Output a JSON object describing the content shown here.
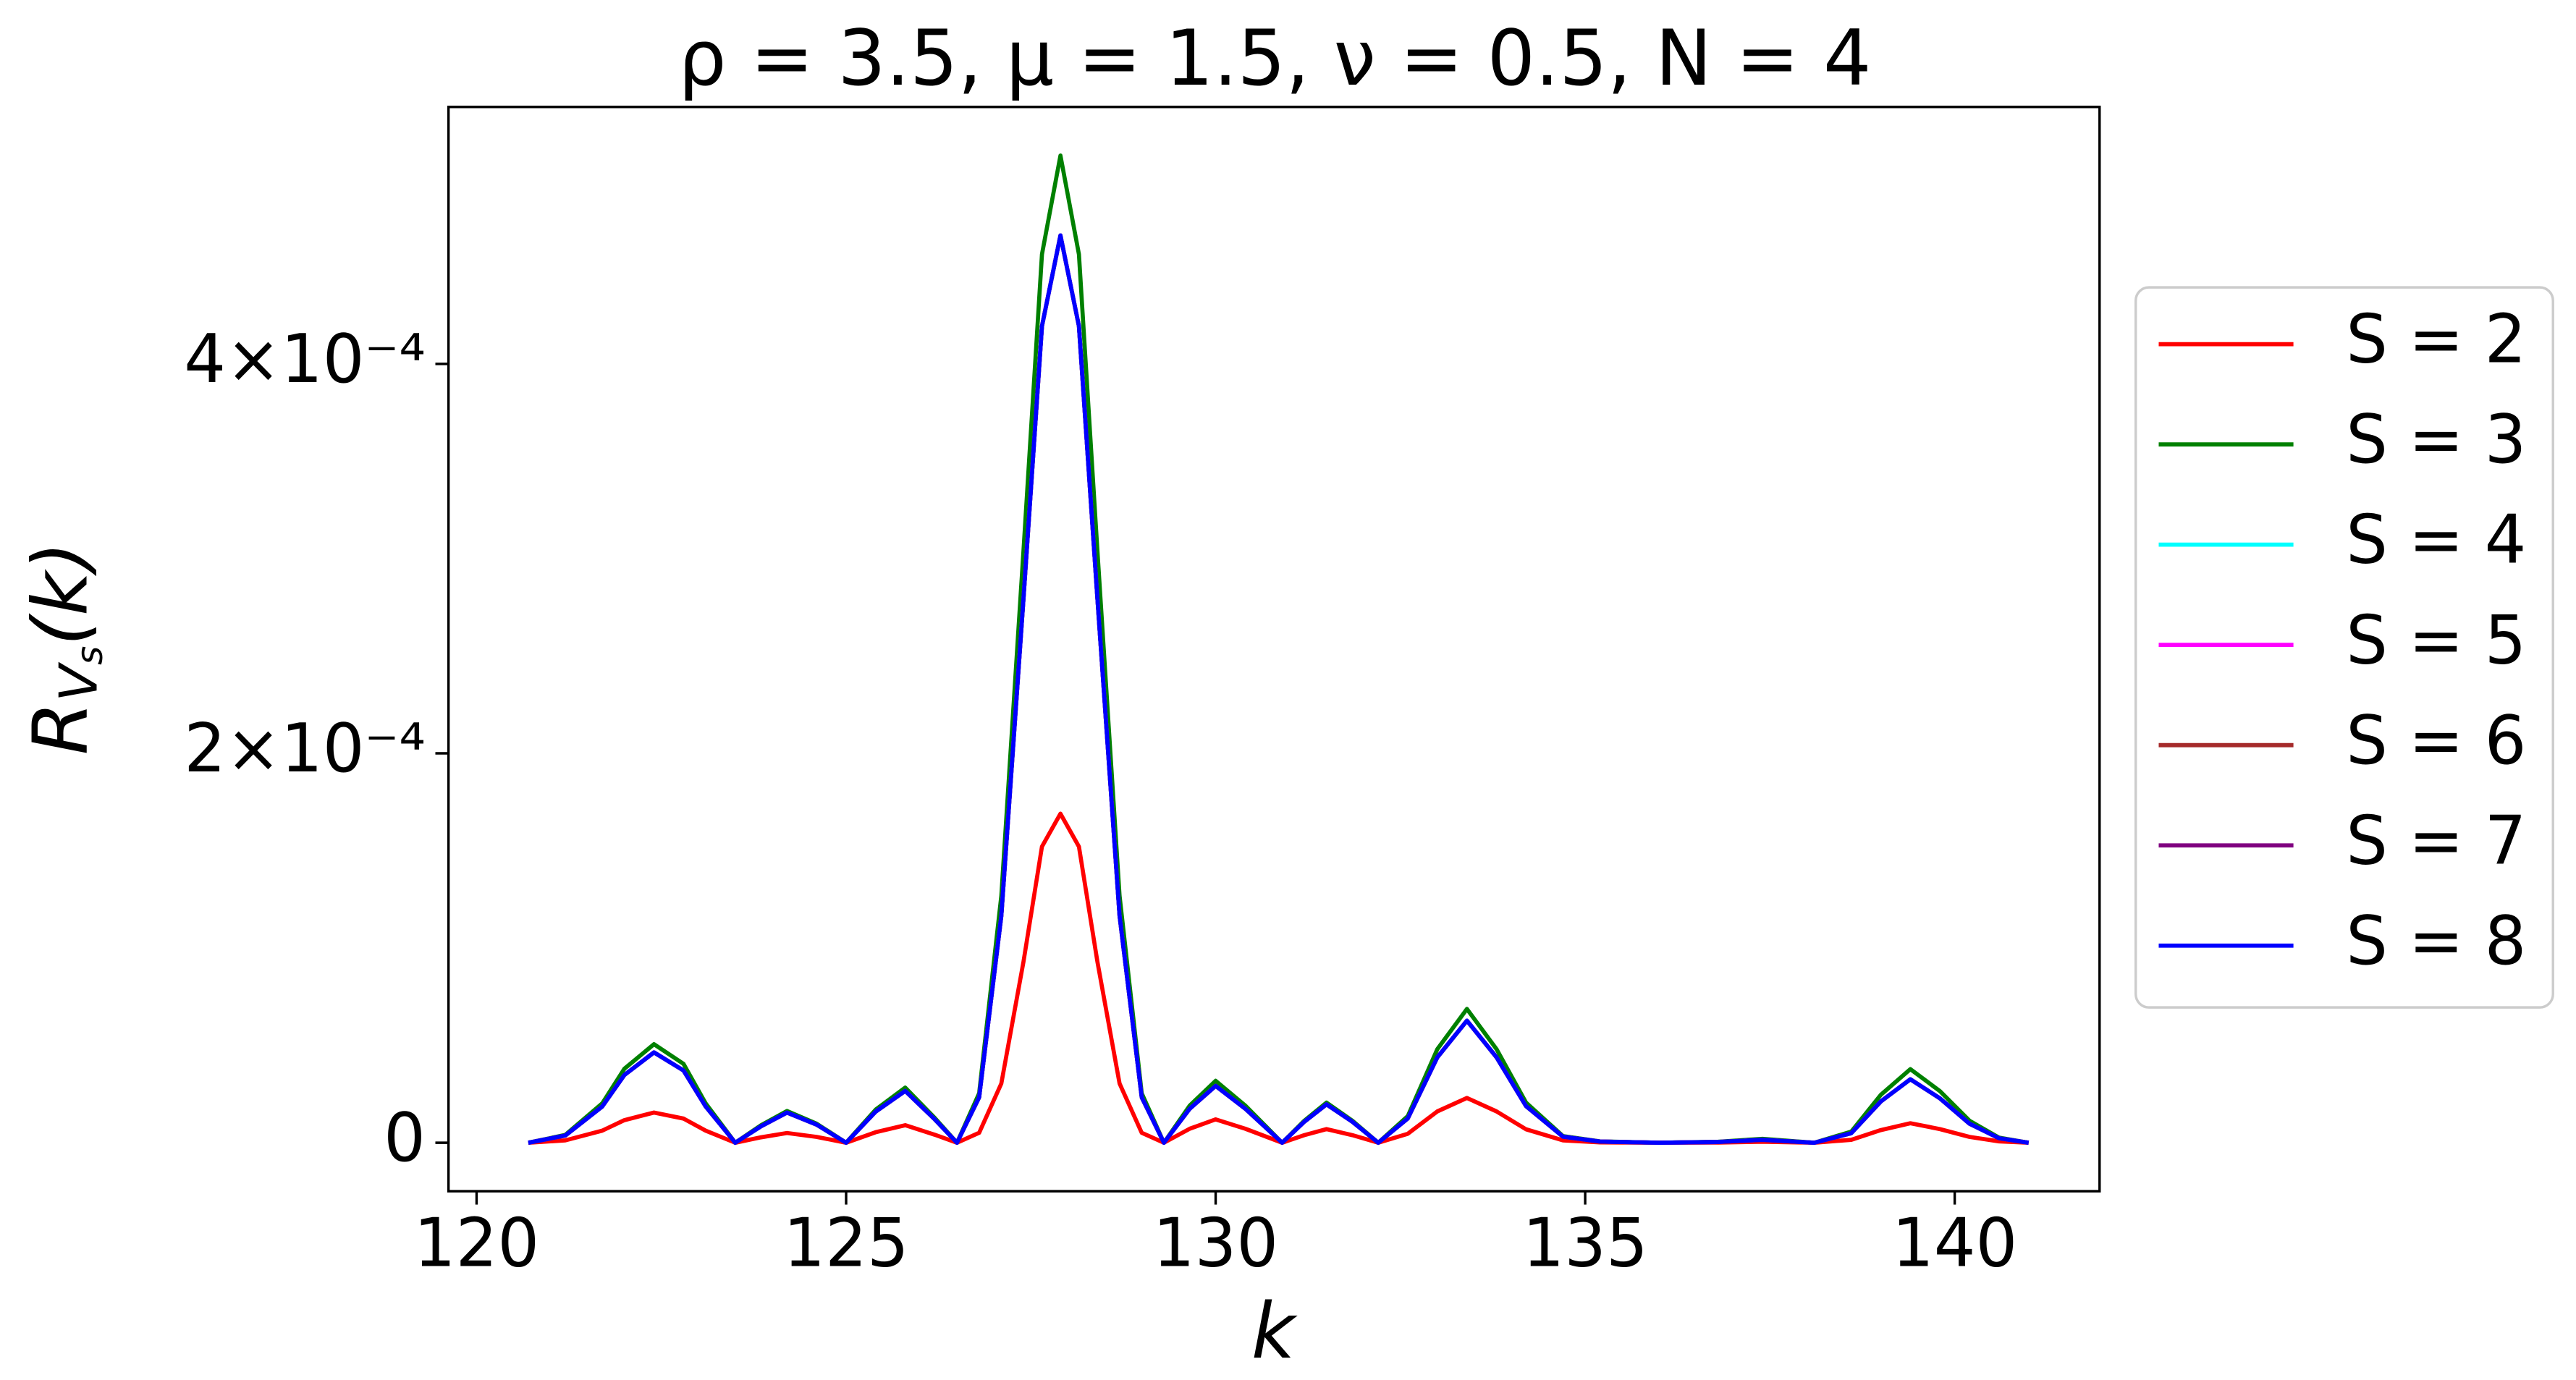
{
  "chart_data": {
    "type": "line",
    "title": "ρ = 3.5, μ = 1.5, ν = 0.5, N = 4",
    "xlabel": "k",
    "ylabel": [
      "R",
      "V",
      "s",
      "(k)"
    ],
    "x": [
      120.7,
      121.2,
      121.7,
      122.0,
      122.4,
      122.8,
      123.1,
      123.5,
      123.85,
      124.2,
      124.6,
      125.0,
      125.4,
      125.8,
      126.2,
      126.5,
      126.8,
      127.1,
      127.4,
      127.65,
      127.9,
      128.15,
      128.4,
      128.7,
      129.0,
      129.3,
      129.65,
      130.0,
      130.4,
      130.9,
      131.2,
      131.5,
      131.85,
      132.2,
      132.6,
      133.0,
      133.4,
      133.8,
      134.2,
      134.7,
      135.2,
      136.0,
      136.8,
      137.4,
      138.1,
      138.6,
      139.0,
      139.4,
      139.8,
      140.2,
      140.6,
      141.0
    ],
    "series": [
      {
        "name": "S = 2",
        "color": "#ff0000",
        "values": [
          0,
          1.2e-06,
          6.2e-06,
          1.16e-05,
          1.55e-05,
          1.24e-05,
          6.2e-06,
          0,
          2.8e-06,
          5e-06,
          3e-06,
          0,
          5.4e-06,
          9e-06,
          4.1e-06,
          0,
          5.1e-06,
          3.04e-05,
          9.3e-05,
          0.0001521,
          0.000169,
          0.0001521,
          9.3e-05,
          3.04e-05,
          5.1e-06,
          0,
          7.2e-06,
          1.2e-05,
          7.2e-06,
          0,
          3.9e-06,
          7e-06,
          3.9e-06,
          0,
          4.6e-06,
          1.61e-05,
          2.3e-05,
          1.61e-05,
          6.9e-06,
          1.2e-06,
          2e-07,
          0,
          1e-07,
          5e-07,
          0,
          1.5e-06,
          6.5e-06,
          1e-05,
          7e-06,
          3e-06,
          7e-07,
          0
        ]
      },
      {
        "name": "S = 3",
        "color": "#008000",
        "values": [
          0,
          4e-06,
          2.02e-05,
          3.8e-05,
          5.06e-05,
          4.05e-05,
          2.02e-05,
          0,
          9e-06,
          1.63e-05,
          9.8e-06,
          0,
          1.7e-05,
          2.83e-05,
          1.27e-05,
          0,
          2.54e-05,
          0.0001268,
          0.0003042,
          0.0004563,
          0.000507,
          0.0004563,
          0.0003042,
          0.0001268,
          2.54e-05,
          0,
          1.91e-05,
          3.18e-05,
          1.91e-05,
          0,
          1.13e-05,
          2.06e-05,
          1.13e-05,
          0,
          1.37e-05,
          4.81e-05,
          6.87e-05,
          4.81e-05,
          2.06e-05,
          3.4e-06,
          7e-07,
          0,
          5e-07,
          2e-06,
          0,
          5.7e-06,
          2.46e-05,
          3.78e-05,
          2.65e-05,
          1.13e-05,
          2.6e-06,
          0
        ]
      },
      {
        "name": "S = 4",
        "color": "#00ffff",
        "values": [
          0,
          3.7e-06,
          1.86e-05,
          3.48e-05,
          4.64e-05,
          3.71e-05,
          1.86e-05,
          0,
          8.5e-06,
          1.55e-05,
          9.3e-06,
          0,
          1.6e-05,
          2.66e-05,
          1.2e-05,
          0,
          2.33e-05,
          0.0001165,
          0.0002796,
          0.0004194,
          0.000466,
          0.0004194,
          0.0002796,
          0.0001165,
          2.33e-05,
          0,
          1.75e-05,
          2.92e-05,
          1.75e-05,
          0,
          1.08e-05,
          1.97e-05,
          1.08e-05,
          0,
          1.25e-05,
          4.39e-05,
          6.27e-05,
          4.39e-05,
          1.88e-05,
          3.1e-06,
          6e-07,
          0,
          4e-07,
          1.5e-06,
          0,
          4.9e-06,
          2.12e-05,
          3.26e-05,
          2.28e-05,
          9.8e-06,
          2.3e-06,
          0
        ]
      },
      {
        "name": "S = 5",
        "color": "#ff00ff",
        "values": [
          0,
          3.7e-06,
          1.86e-05,
          3.48e-05,
          4.64e-05,
          3.71e-05,
          1.86e-05,
          0,
          8.5e-06,
          1.55e-05,
          9.3e-06,
          0,
          1.6e-05,
          2.66e-05,
          1.2e-05,
          0,
          2.33e-05,
          0.0001165,
          0.0002796,
          0.0004194,
          0.000466,
          0.0004194,
          0.0002796,
          0.0001165,
          2.33e-05,
          0,
          1.75e-05,
          2.92e-05,
          1.75e-05,
          0,
          1.08e-05,
          1.97e-05,
          1.08e-05,
          0,
          1.25e-05,
          4.39e-05,
          6.27e-05,
          4.39e-05,
          1.88e-05,
          3.1e-06,
          6e-07,
          0,
          4e-07,
          1.5e-06,
          0,
          4.9e-06,
          2.12e-05,
          3.26e-05,
          2.28e-05,
          9.8e-06,
          2.3e-06,
          0
        ]
      },
      {
        "name": "S = 6",
        "color": "#a52a2a",
        "values": [
          0,
          3.7e-06,
          1.86e-05,
          3.48e-05,
          4.64e-05,
          3.71e-05,
          1.86e-05,
          0,
          8.5e-06,
          1.55e-05,
          9.3e-06,
          0,
          1.6e-05,
          2.66e-05,
          1.2e-05,
          0,
          2.33e-05,
          0.0001165,
          0.0002796,
          0.0004194,
          0.000466,
          0.0004194,
          0.0002796,
          0.0001165,
          2.33e-05,
          0,
          1.75e-05,
          2.92e-05,
          1.75e-05,
          0,
          1.08e-05,
          1.97e-05,
          1.08e-05,
          0,
          1.25e-05,
          4.39e-05,
          6.27e-05,
          4.39e-05,
          1.88e-05,
          3.1e-06,
          6e-07,
          0,
          4e-07,
          1.5e-06,
          0,
          4.9e-06,
          2.12e-05,
          3.26e-05,
          2.28e-05,
          9.8e-06,
          2.3e-06,
          0
        ]
      },
      {
        "name": "S = 7",
        "color": "#800080",
        "values": [
          0,
          3.7e-06,
          1.86e-05,
          3.48e-05,
          4.64e-05,
          3.71e-05,
          1.86e-05,
          0,
          8.5e-06,
          1.55e-05,
          9.3e-06,
          0,
          1.6e-05,
          2.66e-05,
          1.2e-05,
          0,
          2.33e-05,
          0.0001165,
          0.0002796,
          0.0004194,
          0.000466,
          0.0004194,
          0.0002796,
          0.0001165,
          2.33e-05,
          0,
          1.75e-05,
          2.92e-05,
          1.75e-05,
          0,
          1.08e-05,
          1.97e-05,
          1.08e-05,
          0,
          1.25e-05,
          4.39e-05,
          6.27e-05,
          4.39e-05,
          1.88e-05,
          3.1e-06,
          6e-07,
          0,
          4e-07,
          1.5e-06,
          0,
          4.9e-06,
          2.12e-05,
          3.26e-05,
          2.28e-05,
          9.8e-06,
          2.3e-06,
          0
        ]
      },
      {
        "name": "S = 8",
        "color": "#0000ff",
        "values": [
          0,
          3.7e-06,
          1.86e-05,
          3.48e-05,
          4.64e-05,
          3.71e-05,
          1.86e-05,
          0,
          8.5e-06,
          1.55e-05,
          9.3e-06,
          0,
          1.6e-05,
          2.66e-05,
          1.2e-05,
          0,
          2.33e-05,
          0.0001165,
          0.0002796,
          0.0004194,
          0.000466,
          0.0004194,
          0.0002796,
          0.0001165,
          2.33e-05,
          0,
          1.75e-05,
          2.92e-05,
          1.75e-05,
          0,
          1.08e-05,
          1.97e-05,
          1.08e-05,
          0,
          1.25e-05,
          4.39e-05,
          6.27e-05,
          4.39e-05,
          1.88e-05,
          3.1e-06,
          6e-07,
          0,
          4e-07,
          1.5e-06,
          0,
          4.9e-06,
          2.12e-05,
          3.26e-05,
          2.28e-05,
          9.8e-06,
          2.3e-06,
          0
        ]
      }
    ],
    "xlim": [
      119.62,
      141.96
    ],
    "xticks": [
      120,
      125,
      130,
      135,
      140
    ],
    "ylim": [
      -2.49e-05,
      0.000532
    ],
    "yticks": [
      0,
      {
        "value": 0.0002,
        "label": "2×10⁻⁴"
      },
      {
        "value": 0.0004,
        "label": "4×10⁻⁴"
      }
    ],
    "grid": false,
    "legend": "outside right"
  }
}
